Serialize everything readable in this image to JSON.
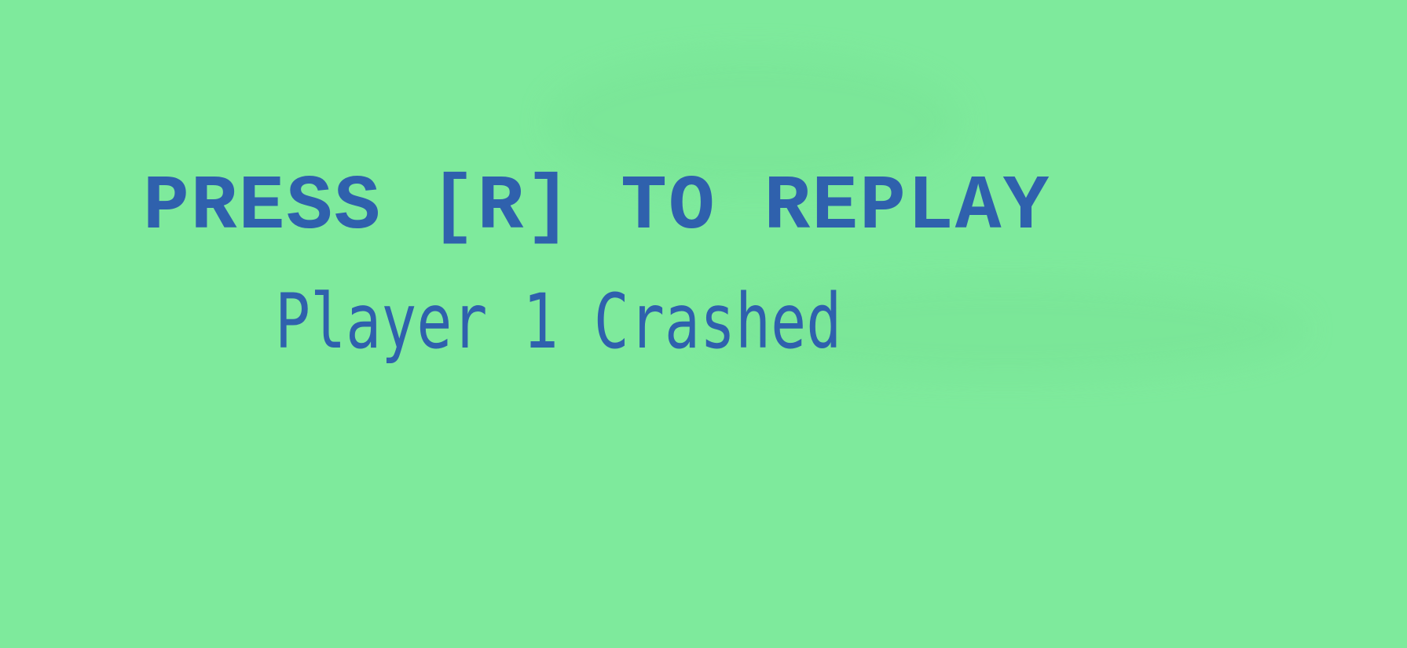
{
  "game_over_screen": {
    "replay_prompt": "PRESS [R] TO REPLAY",
    "status_message": "Player 1 Crashed"
  },
  "colors": {
    "background": "#7eea9c",
    "text": "#2f61ad"
  }
}
